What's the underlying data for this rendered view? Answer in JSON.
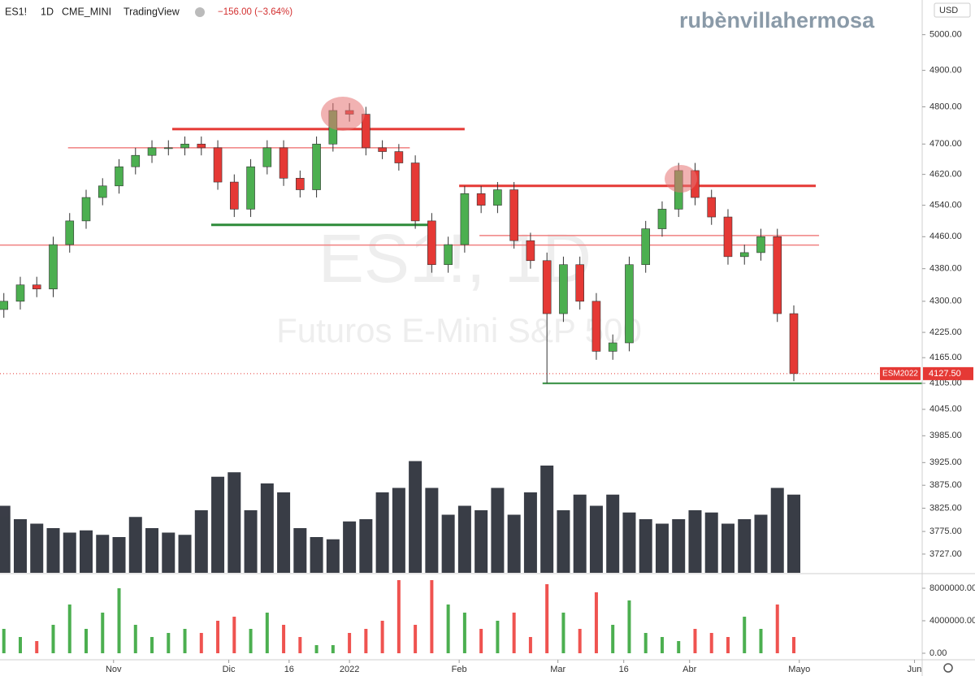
{
  "header": {
    "symbol": "ES1!",
    "interval": "1D",
    "exchange": "CME_MINI",
    "source": "TradingView",
    "change": "−156.00 (−3.64%)",
    "currency": "USD",
    "brand": "rubènvillahermosa"
  },
  "watermark": {
    "symbol": "ES1!, 1D",
    "description": "Futuros E-Mini S&P 500"
  },
  "chart_data": [
    {
      "type": "candlestick",
      "log_scale": true,
      "up_color": "#4caf50",
      "down_color": "#e53935",
      "x": [
        0,
        3,
        6,
        9,
        12,
        15,
        18,
        21,
        24,
        27,
        30,
        33,
        36,
        39,
        42,
        45,
        48,
        51,
        54,
        57,
        60,
        63,
        66,
        69,
        72,
        75,
        78,
        81,
        84,
        87,
        90,
        93,
        96,
        99,
        102,
        105,
        108,
        111,
        114,
        117,
        120,
        123,
        126,
        129,
        132,
        135,
        138,
        141,
        144
      ],
      "open": [
        4280,
        4300,
        4340,
        4330,
        4440,
        4500,
        4560,
        4590,
        4640,
        4670,
        4690,
        4690,
        4700,
        4690,
        4600,
        4530,
        4640,
        4690,
        4610,
        4580,
        4700,
        4790,
        4780,
        4690,
        4680,
        4650,
        4500,
        4390,
        4440,
        4570,
        4540,
        4580,
        4450,
        4400,
        4270,
        4390,
        4300,
        4180,
        4200,
        4390,
        4480,
        4530,
        4630,
        4560,
        4510,
        4410,
        4420,
        4460,
        4270
      ],
      "high": [
        4320,
        4360,
        4360,
        4460,
        4520,
        4580,
        4610,
        4660,
        4690,
        4710,
        4710,
        4720,
        4720,
        4710,
        4620,
        4660,
        4710,
        4710,
        4630,
        4720,
        4810,
        4810,
        4800,
        4710,
        4700,
        4670,
        4520,
        4460,
        4590,
        4590,
        4600,
        4600,
        4470,
        4420,
        4410,
        4410,
        4320,
        4220,
        4410,
        4500,
        4550,
        4650,
        4650,
        4580,
        4530,
        4440,
        4480,
        4480,
        4290
      ],
      "low": [
        4260,
        4280,
        4310,
        4310,
        4420,
        4480,
        4540,
        4570,
        4620,
        4650,
        4670,
        4670,
        4670,
        4580,
        4510,
        4510,
        4620,
        4590,
        4560,
        4560,
        4680,
        4760,
        4670,
        4660,
        4630,
        4480,
        4370,
        4370,
        4420,
        4520,
        4520,
        4430,
        4380,
        4105,
        4250,
        4280,
        4160,
        4160,
        4180,
        4370,
        4460,
        4510,
        4540,
        4490,
        4390,
        4390,
        4400,
        4250,
        4110
      ],
      "close": [
        4300,
        4340,
        4330,
        4440,
        4500,
        4560,
        4590,
        4640,
        4670,
        4690,
        4690,
        4700,
        4690,
        4600,
        4530,
        4640,
        4690,
        4610,
        4580,
        4700,
        4790,
        4780,
        4690,
        4680,
        4650,
        4500,
        4390,
        4440,
        4570,
        4540,
        4580,
        4450,
        4400,
        4270,
        4390,
        4300,
        4180,
        4200,
        4390,
        4480,
        4530,
        4630,
        4560,
        4510,
        4410,
        4420,
        4460,
        4270,
        4127.5
      ],
      "last_symbol": "ESM2022",
      "last_label": "4127.50",
      "xlim": [
        -0.7,
        167.4
      ],
      "ylim": [
        3686,
        5099
      ],
      "xticks": [
        {
          "value": 20,
          "label": "Nov"
        },
        {
          "value": 41,
          "label": "Dic"
        },
        {
          "value": 52,
          "label": "16"
        },
        {
          "value": 63,
          "label": "2022"
        },
        {
          "value": 83,
          "label": "Feb"
        },
        {
          "value": 101,
          "label": "Mar"
        },
        {
          "value": 113,
          "label": "16"
        },
        {
          "value": 125,
          "label": "Abr"
        },
        {
          "value": 145,
          "label": "Mayo"
        },
        {
          "value": 166,
          "label": "Jun"
        }
      ],
      "yticks": [
        {
          "value": 5000,
          "label": "5000.00"
        },
        {
          "value": 4900,
          "label": "4900.00"
        },
        {
          "value": 4800,
          "label": "4800.00"
        },
        {
          "value": 4700,
          "label": "4700.00"
        },
        {
          "value": 4620,
          "label": "4620.00"
        },
        {
          "value": 4540,
          "label": "4540.00"
        },
        {
          "value": 4460,
          "label": "4460.00"
        },
        {
          "value": 4380,
          "label": "4380.00"
        },
        {
          "value": 4300,
          "label": "4300.00"
        },
        {
          "value": 4225,
          "label": "4225.00"
        },
        {
          "value": 4165,
          "label": "4165.00"
        },
        {
          "value": 4105,
          "label": "4105.00"
        },
        {
          "value": 4045,
          "label": "4045.00"
        },
        {
          "value": 3985,
          "label": "3985.00"
        },
        {
          "value": 3925,
          "label": "3925.00"
        },
        {
          "value": 3875,
          "label": "3875.00"
        },
        {
          "value": 3825,
          "label": "3825.00"
        },
        {
          "value": 3775,
          "label": "3775.00"
        },
        {
          "value": 3727,
          "label": "3727.00"
        }
      ],
      "levels": [
        {
          "value": 4740,
          "x_from": 30.7,
          "x_to": 84,
          "color": "#e53935",
          "width": 3
        },
        {
          "value": 4590,
          "x_from": 83,
          "x_to": 148,
          "color": "#e53935",
          "width": 3
        },
        {
          "value": 4490,
          "x_from": 37.8,
          "x_to": 77.8,
          "color": "#2e8b3a",
          "width": 3
        },
        {
          "value": 4105,
          "x_from": 98.2,
          "x_to": 167.4,
          "color": "#2e8b3a",
          "width": 2
        },
        {
          "value": 4690,
          "x_from": 11.7,
          "x_to": 74,
          "color": "#f08080",
          "width": 1.5
        },
        {
          "value": 4439,
          "x_from": -0.7,
          "x_to": 148.6,
          "color": "#f08080",
          "width": 1.5
        },
        {
          "value": 4463,
          "x_from": 86.7,
          "x_to": 148.6,
          "color": "#f08080",
          "width": 1.5
        }
      ]
    },
    {
      "type": "bar",
      "color": "#2f333d",
      "x": [
        0,
        3,
        6,
        9,
        12,
        15,
        18,
        21,
        24,
        27,
        30,
        33,
        36,
        39,
        42,
        45,
        48,
        51,
        54,
        57,
        60,
        63,
        66,
        69,
        72,
        75,
        78,
        81,
        84,
        87,
        90,
        93,
        96,
        99,
        102,
        105,
        108,
        111,
        114,
        117,
        120,
        123,
        126,
        129,
        132,
        135,
        138,
        141,
        144
      ],
      "values": [
        3000000,
        2400000,
        2200000,
        2000000,
        1800000,
        1900000,
        1700000,
        1600000,
        2500000,
        2000000,
        1800000,
        1700000,
        2800000,
        4300000,
        4500000,
        2800000,
        4000000,
        3600000,
        2000000,
        1600000,
        1500000,
        2300000,
        2400000,
        3600000,
        3800000,
        5000000,
        3800000,
        2600000,
        3000000,
        2800000,
        3800000,
        2600000,
        3600000,
        4800000,
        2800000,
        3500000,
        3000000,
        3500000,
        2700000,
        2400000,
        2200000,
        2400000,
        2800000,
        2700000,
        2200000,
        2400000,
        2600000,
        3800000,
        3500000
      ],
      "xlim": [
        -0.7,
        167.4
      ],
      "ylim": [
        0,
        10000000
      ]
    },
    {
      "type": "volume",
      "up_color": "#4caf50",
      "down_color": "#ef5350",
      "x": [
        0,
        3,
        6,
        9,
        12,
        15,
        18,
        21,
        24,
        27,
        30,
        33,
        36,
        39,
        42,
        45,
        48,
        51,
        54,
        57,
        60,
        63,
        66,
        69,
        72,
        75,
        78,
        81,
        84,
        87,
        90,
        93,
        96,
        99,
        102,
        105,
        108,
        111,
        114,
        117,
        120,
        123,
        126,
        129,
        132,
        135,
        138,
        141,
        144
      ],
      "values": [
        3000000,
        2000000,
        1500000,
        3500000,
        6000000,
        3000000,
        5000000,
        8000000,
        3500000,
        2000000,
        2500000,
        3000000,
        2500000,
        4000000,
        4500000,
        3000000,
        5000000,
        3500000,
        2000000,
        1000000,
        1000000,
        2500000,
        3000000,
        4000000,
        9000000,
        3500000,
        9000000,
        6000000,
        5000000,
        3000000,
        4000000,
        5000000,
        2000000,
        8500000,
        5000000,
        3000000,
        7500000,
        3500000,
        6500000,
        2500000,
        2000000,
        1500000,
        3000000,
        2500000,
        2000000,
        4500000,
        3000000,
        6000000,
        2000000
      ],
      "xlim": [
        -0.7,
        167.4
      ],
      "ylim": [
        0,
        9200000
      ],
      "yticks": [
        {
          "value": 0,
          "label": "0.00"
        },
        {
          "value": 4000000,
          "label": "4000000.00"
        },
        {
          "value": 8000000,
          "label": "8000000.00"
        }
      ]
    }
  ]
}
